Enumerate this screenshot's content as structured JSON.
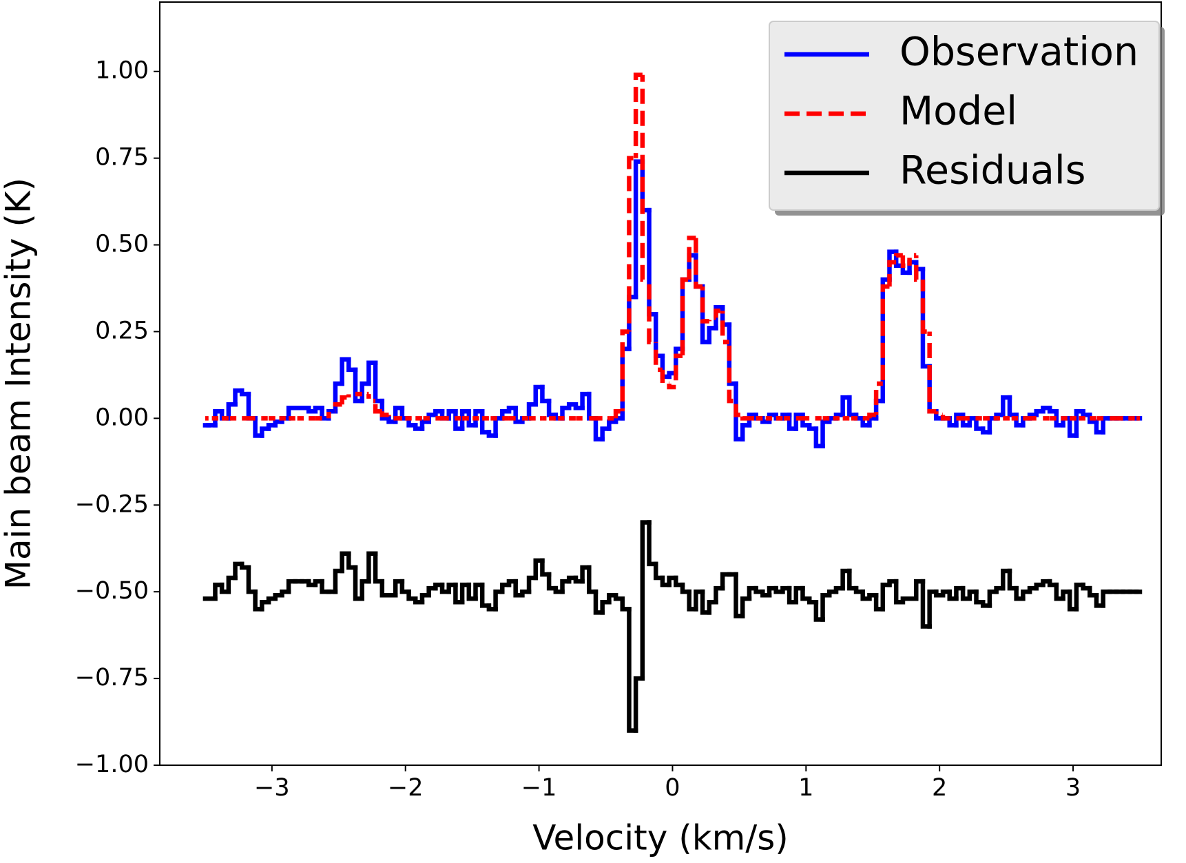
{
  "chart_data": {
    "type": "step",
    "drawstyle": "steps-mid",
    "xlabel": "Velocity (km/s)",
    "ylabel": "Main beam Intensity (K)",
    "xlim": [
      -3.84,
      3.66
    ],
    "ylim": [
      -1.0,
      1.2
    ],
    "xticks": [
      {
        "value": -3,
        "label": "−3"
      },
      {
        "value": -2,
        "label": "−2"
      },
      {
        "value": -1,
        "label": "−1"
      },
      0,
      1,
      2,
      3
    ],
    "yticks": [
      {
        "value": -1,
        "label": "−1.00"
      },
      {
        "value": -0.75,
        "label": "−0.75"
      },
      {
        "value": -0.5,
        "label": "−0.50"
      },
      {
        "value": -0.25,
        "label": "−0.25"
      },
      {
        "value": 0,
        "label": "0.00"
      },
      {
        "value": 0.25,
        "label": "0.25"
      },
      {
        "value": 0.5,
        "label": "0.50"
      },
      {
        "value": 0.75,
        "label": "0.75"
      },
      {
        "value": 1,
        "label": "1.00"
      }
    ],
    "grid": false,
    "legend": "upper right",
    "x": [
      -3.5,
      -3.45,
      -3.4,
      -3.35,
      -3.3,
      -3.25,
      -3.2,
      -3.15,
      -3.1,
      -3.05,
      -3.0,
      -2.95,
      -2.9,
      -2.85,
      -2.8,
      -2.75,
      -2.7,
      -2.65,
      -2.6,
      -2.55,
      -2.5,
      -2.45,
      -2.4,
      -2.35,
      -2.3,
      -2.25,
      -2.2,
      -2.15,
      -2.1,
      -2.05,
      -2.0,
      -1.95,
      -1.9,
      -1.85,
      -1.8,
      -1.75,
      -1.7,
      -1.65,
      -1.6,
      -1.55,
      -1.5,
      -1.45,
      -1.4,
      -1.35,
      -1.3,
      -1.25,
      -1.2,
      -1.15,
      -1.1,
      -1.05,
      -1.0,
      -0.95,
      -0.9,
      -0.85,
      -0.8,
      -0.75,
      -0.7,
      -0.65,
      -0.6,
      -0.55,
      -0.5,
      -0.45,
      -0.4,
      -0.35,
      -0.3,
      -0.25,
      -0.2,
      -0.15,
      -0.1,
      -0.05,
      0.0,
      0.05,
      0.1,
      0.15,
      0.2,
      0.25,
      0.3,
      0.35,
      0.4,
      0.45,
      0.5,
      0.55,
      0.6,
      0.65,
      0.7,
      0.75,
      0.8,
      0.85,
      0.9,
      0.95,
      1.0,
      1.05,
      1.1,
      1.15,
      1.2,
      1.25,
      1.3,
      1.35,
      1.4,
      1.45,
      1.5,
      1.55,
      1.6,
      1.65,
      1.7,
      1.75,
      1.8,
      1.85,
      1.9,
      1.95,
      2.0,
      2.05,
      2.1,
      2.15,
      2.2,
      2.25,
      2.3,
      2.35,
      2.4,
      2.45,
      2.5,
      2.55,
      2.6,
      2.65,
      2.7,
      2.75,
      2.8,
      2.85,
      2.9,
      2.95,
      3.0,
      3.05,
      3.1,
      3.15,
      3.2,
      3.25,
      3.3,
      3.35,
      3.4,
      3.45,
      3.5
    ],
    "series": [
      {
        "name": "Observation",
        "color": "#0000ff",
        "dash": false,
        "values": [
          -0.02,
          -0.02,
          0.02,
          0.0,
          0.04,
          0.08,
          0.07,
          0.0,
          -0.05,
          -0.03,
          -0.02,
          -0.01,
          0.0,
          0.03,
          0.03,
          0.03,
          0.02,
          0.03,
          0.0,
          0.02,
          0.1,
          0.17,
          0.14,
          0.05,
          0.1,
          0.16,
          0.05,
          0.0,
          -0.01,
          0.03,
          0.0,
          -0.02,
          -0.03,
          -0.01,
          0.01,
          0.02,
          0.0,
          0.02,
          -0.03,
          0.02,
          -0.02,
          0.02,
          -0.04,
          -0.05,
          0.0,
          0.02,
          0.03,
          -0.01,
          0.0,
          0.04,
          0.09,
          0.05,
          0.01,
          0.0,
          0.03,
          0.04,
          0.03,
          0.07,
          0.0,
          -0.06,
          -0.03,
          -0.01,
          0.0,
          0.2,
          0.35,
          0.74,
          0.6,
          0.3,
          0.18,
          0.12,
          0.13,
          0.2,
          0.4,
          0.47,
          0.38,
          0.22,
          0.26,
          0.32,
          0.27,
          0.1,
          -0.06,
          -0.02,
          0.01,
          0.0,
          -0.01,
          0.01,
          0.0,
          0.01,
          -0.03,
          0.01,
          -0.02,
          -0.03,
          -0.08,
          -0.01,
          0.0,
          0.01,
          0.06,
          0.01,
          0.0,
          -0.02,
          0.0,
          0.05,
          0.4,
          0.48,
          0.44,
          0.42,
          0.45,
          0.43,
          0.15,
          0.02,
          0.0,
          0.0,
          -0.02,
          0.01,
          -0.02,
          0.0,
          -0.03,
          -0.04,
          0.0,
          0.01,
          0.06,
          0.01,
          -0.02,
          0.0,
          0.01,
          0.02,
          0.03,
          0.02,
          -0.02,
          0.0,
          -0.05,
          0.02,
          0.01,
          -0.01,
          -0.04,
          0,
          0,
          0,
          0,
          0,
          0
        ]
      },
      {
        "name": "Model",
        "color": "#ff0000",
        "dash": true,
        "values": [
          0,
          0,
          0,
          0,
          0,
          0,
          0,
          0,
          0,
          0,
          0,
          0,
          0,
          0,
          0,
          0,
          0,
          0,
          0,
          0.02,
          0.04,
          0.06,
          0.07,
          0.07,
          0.07,
          0.05,
          0.02,
          0.01,
          0,
          0,
          0,
          0,
          0,
          0,
          0,
          0,
          0,
          0,
          0,
          0,
          0,
          0,
          0,
          0,
          0,
          0,
          0,
          0,
          0,
          0,
          0,
          0,
          0,
          0,
          0,
          0,
          0,
          0,
          0,
          0,
          0,
          0,
          0.02,
          0.25,
          0.75,
          0.99,
          0.4,
          0.22,
          0.14,
          0.1,
          0.09,
          0.18,
          0.4,
          0.52,
          0.38,
          0.28,
          0.29,
          0.31,
          0.22,
          0.05,
          0.01,
          0,
          0,
          0,
          0,
          0,
          0,
          0,
          0,
          0,
          0,
          0,
          0,
          0,
          0,
          0,
          0,
          0,
          0,
          0,
          0.01,
          0.1,
          0.38,
          0.45,
          0.47,
          0.44,
          0.47,
          0.4,
          0.25,
          0.02,
          0.01,
          0,
          0,
          0,
          0,
          0,
          0,
          0,
          0,
          0,
          0,
          0,
          0,
          0,
          0,
          0,
          0,
          0,
          0,
          0,
          0,
          0,
          0,
          0,
          0,
          0,
          0,
          0,
          0,
          0,
          0
        ]
      },
      {
        "name": "Residuals",
        "color": "#000000",
        "dash": false,
        "values": [
          -0.52,
          -0.52,
          -0.48,
          -0.5,
          -0.46,
          -0.42,
          -0.43,
          -0.5,
          -0.55,
          -0.53,
          -0.52,
          -0.51,
          -0.5,
          -0.47,
          -0.47,
          -0.47,
          -0.48,
          -0.47,
          -0.5,
          -0.5,
          -0.44,
          -0.39,
          -0.43,
          -0.52,
          -0.47,
          -0.39,
          -0.47,
          -0.51,
          -0.51,
          -0.47,
          -0.5,
          -0.52,
          -0.53,
          -0.51,
          -0.49,
          -0.48,
          -0.5,
          -0.48,
          -0.53,
          -0.48,
          -0.52,
          -0.48,
          -0.54,
          -0.55,
          -0.5,
          -0.48,
          -0.47,
          -0.51,
          -0.5,
          -0.46,
          -0.41,
          -0.45,
          -0.49,
          -0.5,
          -0.47,
          -0.46,
          -0.47,
          -0.43,
          -0.5,
          -0.56,
          -0.53,
          -0.51,
          -0.52,
          -0.55,
          -0.9,
          -0.75,
          -0.3,
          -0.42,
          -0.46,
          -0.48,
          -0.46,
          -0.48,
          -0.5,
          -0.55,
          -0.5,
          -0.56,
          -0.53,
          -0.49,
          -0.45,
          -0.45,
          -0.57,
          -0.52,
          -0.49,
          -0.5,
          -0.51,
          -0.49,
          -0.5,
          -0.49,
          -0.53,
          -0.49,
          -0.52,
          -0.53,
          -0.58,
          -0.51,
          -0.5,
          -0.49,
          -0.44,
          -0.49,
          -0.5,
          -0.52,
          -0.51,
          -0.55,
          -0.48,
          -0.47,
          -0.53,
          -0.52,
          -0.52,
          -0.47,
          -0.6,
          -0.5,
          -0.51,
          -0.5,
          -0.52,
          -0.49,
          -0.52,
          -0.5,
          -0.53,
          -0.54,
          -0.5,
          -0.49,
          -0.44,
          -0.49,
          -0.52,
          -0.5,
          -0.49,
          -0.48,
          -0.47,
          -0.48,
          -0.52,
          -0.5,
          -0.55,
          -0.48,
          -0.49,
          -0.51,
          -0.54,
          -0.5,
          -0.5,
          -0.5,
          -0.5,
          -0.5,
          -0.5
        ]
      }
    ]
  }
}
